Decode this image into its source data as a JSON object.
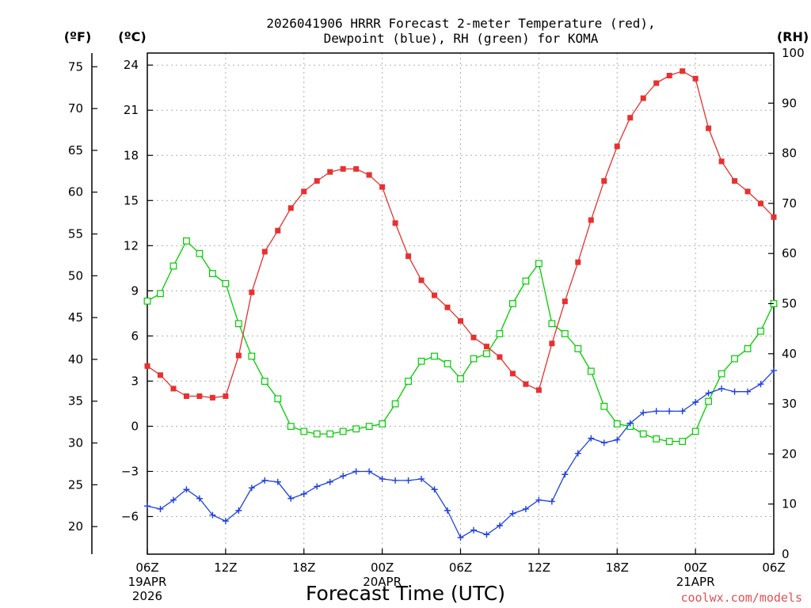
{
  "chart_data": {
    "type": "line",
    "title_line1": "2026041906 HRRR Forecast 2-meter Temperature (red),",
    "title_line2": "Dewpoint (blue), RH (green) for KOMA",
    "xlabel": "Forecast Time (UTC)",
    "credit": "coolwx.com/models",
    "unit_f": "(ºF)",
    "unit_c": "(ºC)",
    "unit_rh": "(RH)",
    "x_range_hours": [
      0,
      48
    ],
    "xticks": [
      {
        "hour": 0,
        "line1": "06Z",
        "line2": "19APR",
        "line3": "2026"
      },
      {
        "hour": 6,
        "line1": "12Z",
        "line2": "",
        "line3": ""
      },
      {
        "hour": 12,
        "line1": "18Z",
        "line2": "",
        "line3": ""
      },
      {
        "hour": 18,
        "line1": "00Z",
        "line2": "20APR",
        "line3": ""
      },
      {
        "hour": 24,
        "line1": "06Z",
        "line2": "",
        "line3": ""
      },
      {
        "hour": 30,
        "line1": "12Z",
        "line2": "",
        "line3": ""
      },
      {
        "hour": 36,
        "line1": "18Z",
        "line2": "",
        "line3": ""
      },
      {
        "hour": 42,
        "line1": "00Z",
        "line2": "21APR",
        "line3": ""
      },
      {
        "hour": 48,
        "line1": "06Z",
        "line2": "",
        "line3": ""
      }
    ],
    "c_range": [
      -8.5,
      24.8
    ],
    "c_ticks": [
      "24",
      "21",
      "18",
      "15",
      "12",
      "9",
      "6",
      "3",
      "0",
      "−3",
      "−6"
    ],
    "c_tick_values": [
      24,
      21,
      18,
      15,
      12,
      9,
      6,
      3,
      0,
      -3,
      -6
    ],
    "f_ticks": [
      "75",
      "70",
      "65",
      "60",
      "55",
      "50",
      "45",
      "40",
      "35",
      "30",
      "25",
      "20"
    ],
    "f_tick_values": [
      75,
      70,
      65,
      60,
      55,
      50,
      45,
      40,
      35,
      30,
      25,
      20
    ],
    "rh_range": [
      0,
      100
    ],
    "rh_ticks": [
      "100",
      "90",
      "80",
      "70",
      "60",
      "50",
      "40",
      "30",
      "20",
      "10",
      "0"
    ],
    "rh_tick_values": [
      100,
      90,
      80,
      70,
      60,
      50,
      40,
      30,
      20,
      10,
      0
    ],
    "colors": {
      "temperature": "#e83030",
      "dewpoint": "#2040e0",
      "rh": "#00cc00",
      "grid": "#b0b0b0"
    },
    "series": [
      {
        "name": "Temperature (°C)",
        "values": [
          4.0,
          3.4,
          2.5,
          2.0,
          2.0,
          1.9,
          2.0,
          4.7,
          8.9,
          11.6,
          13.0,
          14.5,
          15.6,
          16.3,
          16.9,
          17.1,
          17.1,
          16.7,
          15.9,
          13.5,
          11.3,
          9.7,
          8.7,
          7.9,
          7.0,
          5.9,
          5.3,
          4.6,
          3.5,
          2.8,
          2.4,
          5.5,
          8.3,
          10.9,
          13.7,
          16.3,
          18.6,
          20.5,
          21.8,
          22.8,
          23.3,
          23.6,
          23.1,
          19.8,
          17.6,
          16.3,
          15.6,
          14.8,
          13.9
        ]
      },
      {
        "name": "Dewpoint (°C)",
        "values": [
          -5.3,
          -5.5,
          -4.9,
          -4.2,
          -4.8,
          -5.9,
          -6.3,
          -5.6,
          -4.1,
          -3.6,
          -3.7,
          -4.8,
          -4.5,
          -4.0,
          -3.7,
          -3.3,
          -3.0,
          -3.0,
          -3.5,
          -3.6,
          -3.6,
          -3.5,
          -4.2,
          -5.6,
          -7.4,
          -6.9,
          -7.2,
          -6.6,
          -5.8,
          -5.5,
          -4.9,
          -5.0,
          -3.2,
          -1.8,
          -0.8,
          -1.1,
          -0.9,
          0.2,
          0.9,
          1.0,
          1.0,
          1.0,
          1.6,
          2.2,
          2.5,
          2.3,
          2.3,
          2.8,
          3.7
        ]
      },
      {
        "name": "RH (%)",
        "values": [
          50.5,
          52,
          57.5,
          62.5,
          60,
          56,
          54,
          46,
          39.5,
          34.5,
          31,
          25.5,
          24.5,
          24,
          24,
          24.5,
          25,
          25.5,
          26,
          30,
          34.5,
          38.5,
          39.5,
          38,
          35,
          39,
          40,
          44,
          50,
          54.5,
          58,
          46,
          44,
          41,
          36.5,
          29.5,
          26,
          25.5,
          24,
          23,
          22.5,
          22.5,
          24.5,
          30.5,
          36,
          39,
          41,
          44.5,
          50
        ]
      }
    ]
  }
}
